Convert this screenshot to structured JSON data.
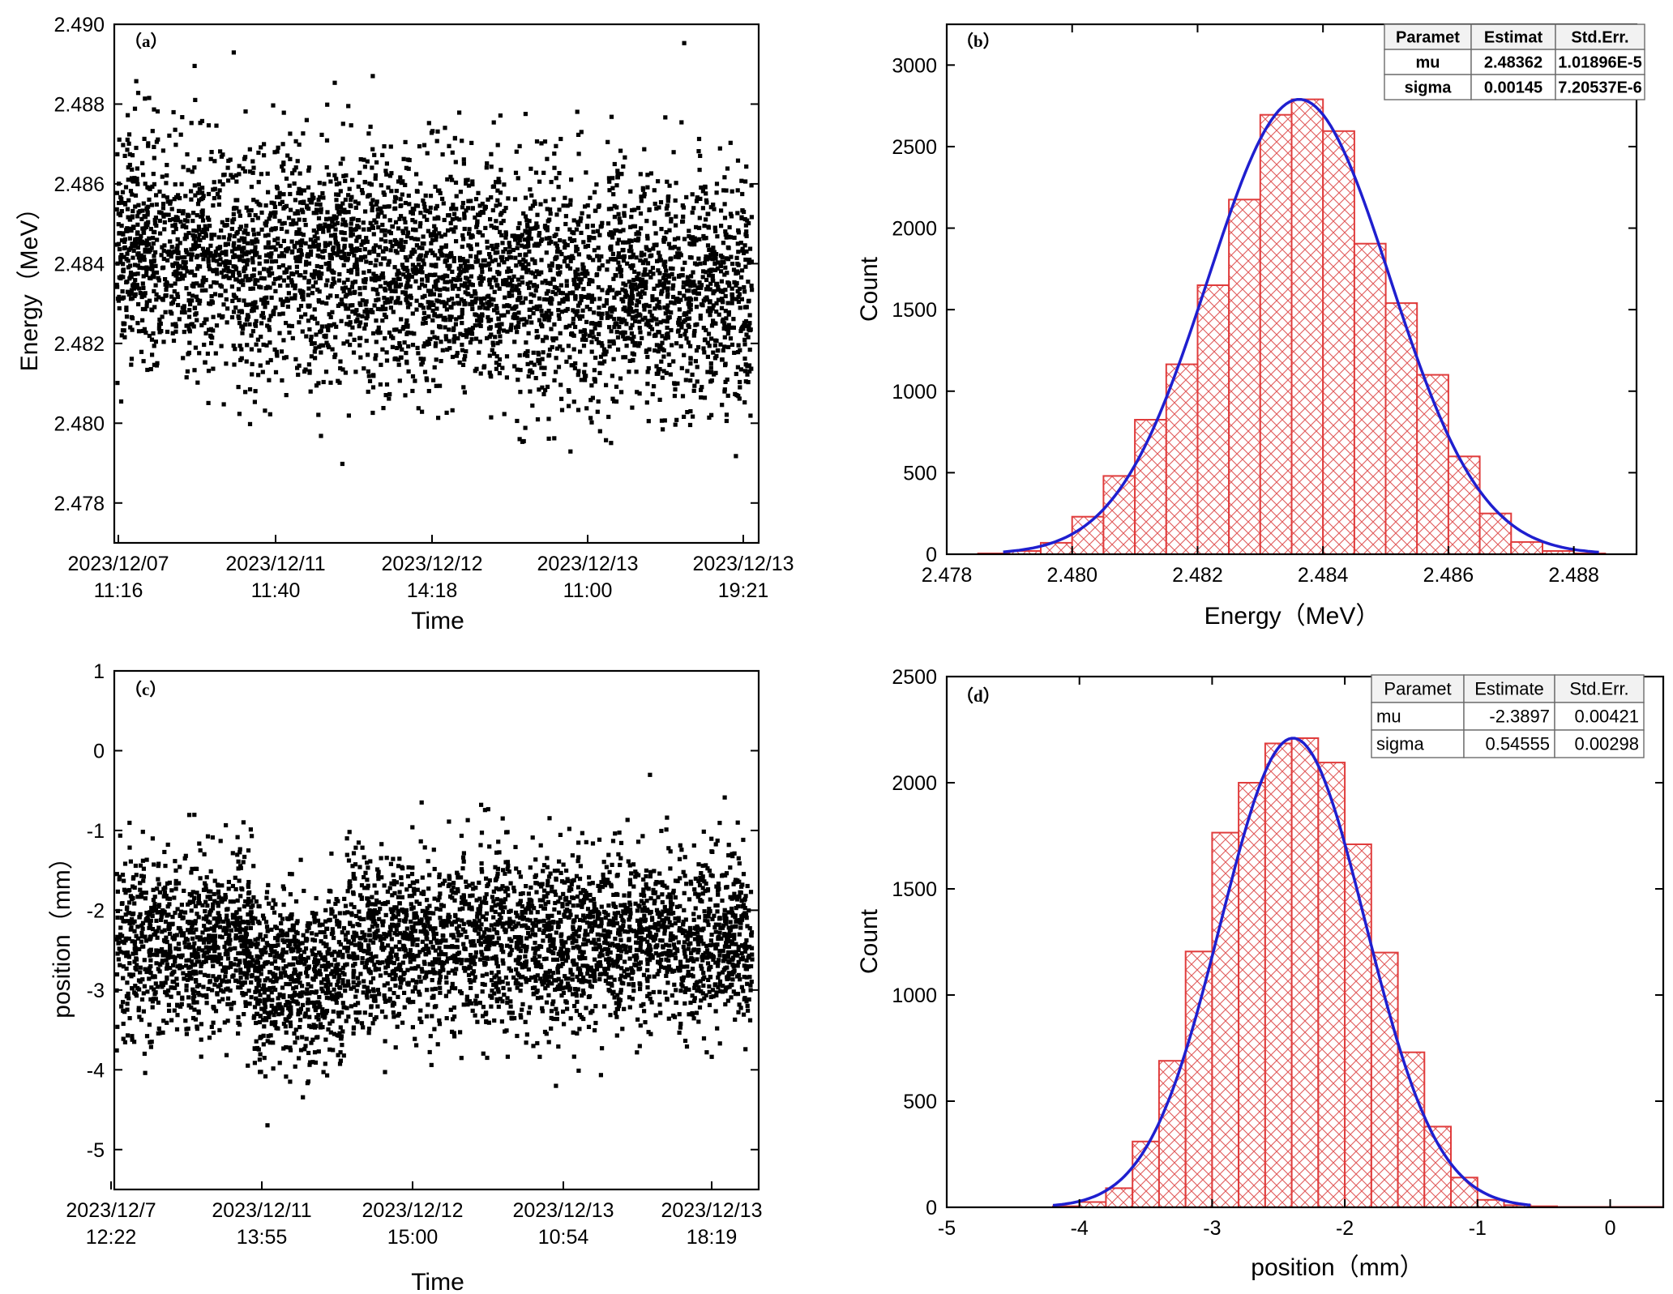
{
  "chart_data": [
    {
      "panel": "(a)",
      "type": "scatter",
      "xlabel": "Time",
      "ylabel": "Energy（MeV）",
      "x_tick_labels": [
        [
          "2023/12/07",
          "11:16"
        ],
        [
          "2023/12/11",
          "11:40"
        ],
        [
          "2023/12/12",
          "14:18"
        ],
        [
          "2023/12/13",
          "11:00"
        ],
        [
          "2023/12/13",
          "19:21"
        ]
      ],
      "y_ticks": [
        "2.478",
        "2.480",
        "2.482",
        "2.484",
        "2.486",
        "2.488",
        "2.490"
      ],
      "ylim": [
        2.477,
        2.49
      ],
      "x_index_range": [
        0,
        4.1
      ],
      "series": [
        {
          "name": "energy",
          "mean_start": 2.4843,
          "mean_end": 2.4832,
          "sigma": 0.00145,
          "n_points": 4200,
          "color": "#000000"
        }
      ]
    },
    {
      "panel": "(b)",
      "type": "bar",
      "xlabel": "Energy（MeV）",
      "ylabel": "Count",
      "x_ticks": [
        "2.478",
        "2.480",
        "2.482",
        "2.484",
        "2.486",
        "2.488"
      ],
      "y_ticks": [
        "0",
        "500",
        "1000",
        "1500",
        "2000",
        "2500",
        "3000"
      ],
      "xlim": [
        2.478,
        2.489
      ],
      "ylim": [
        0,
        3250
      ],
      "bin_width": 0.0005,
      "bin_starts": [
        2.4785,
        2.479,
        2.4795,
        2.48,
        2.4805,
        2.481,
        2.4815,
        2.482,
        2.4825,
        2.483,
        2.4835,
        2.484,
        2.4845,
        2.485,
        2.4855,
        2.486,
        2.4865,
        2.487,
        2.4875,
        2.488
      ],
      "values": [
        5,
        20,
        70,
        230,
        480,
        825,
        1165,
        1650,
        2175,
        2695,
        2790,
        2595,
        1905,
        1540,
        1100,
        600,
        250,
        75,
        20,
        5
      ],
      "bar_color": "#e03c3c",
      "fit": {
        "type": "gauss",
        "color": "#1f1fcf",
        "mu": 2.48362,
        "sigma": 0.00145,
        "peak": 2790,
        "x_range": [
          2.4789,
          2.4884
        ]
      },
      "table": {
        "headers": [
          "Paramet",
          "Estimat",
          "Std.Err."
        ],
        "rows": [
          [
            "mu",
            "2.48362",
            "1.01896E-5"
          ],
          [
            "sigma",
            "0.00145",
            "7.20537E-6"
          ]
        ]
      }
    },
    {
      "panel": "(c)",
      "type": "scatter",
      "xlabel": "Time",
      "ylabel": "position（mm）",
      "x_tick_labels": [
        [
          "2023/12/7",
          "12:22"
        ],
        [
          "2023/12/11",
          "13:55"
        ],
        [
          "2023/12/12",
          "15:00"
        ],
        [
          "2023/12/13",
          "10:54"
        ],
        [
          "2023/12/13",
          "18:19"
        ]
      ],
      "y_ticks": [
        "-5",
        "-4",
        "-3",
        "-2",
        "-1",
        "0",
        "1"
      ],
      "ylim": [
        -5.5,
        1
      ],
      "x_index_range": [
        0,
        4.2
      ],
      "series": [
        {
          "name": "position",
          "mean": -2.39,
          "sigma": 0.5456,
          "dip_region_index": [
            0.95,
            1.55
          ],
          "dip_mean": -2.85,
          "n_points": 4200,
          "color": "#000000"
        }
      ]
    },
    {
      "panel": "(d)",
      "type": "bar",
      "xlabel": "position（mm）",
      "ylabel": "Count",
      "x_ticks": [
        "-5",
        "-4",
        "-3",
        "-2",
        "-1",
        "0"
      ],
      "y_ticks": [
        "0",
        "500",
        "1000",
        "1500",
        "2000",
        "2500"
      ],
      "xlim": [
        -5,
        0.4
      ],
      "ylim": [
        0,
        2500
      ],
      "bin_width": 0.2,
      "bin_starts": [
        -4.2,
        -4.0,
        -3.8,
        -3.6,
        -3.4,
        -3.2,
        -3.0,
        -2.8,
        -2.6,
        -2.4,
        -2.2,
        -2.0,
        -1.8,
        -1.6,
        -1.4,
        -1.2,
        -1.0,
        -0.8,
        -0.6,
        -0.4,
        -0.2,
        0.0,
        0.2
      ],
      "values": [
        5,
        25,
        90,
        310,
        690,
        1205,
        1765,
        2000,
        2185,
        2210,
        2095,
        1710,
        1200,
        730,
        380,
        140,
        35,
        10,
        5,
        2,
        2,
        2,
        2
      ],
      "bar_color": "#e03c3c",
      "fit": {
        "type": "gauss",
        "color": "#1f1fcf",
        "mu": -2.3897,
        "sigma": 0.54555,
        "peak": 2210,
        "x_range": [
          -4.2,
          -0.6
        ]
      },
      "table": {
        "headers": [
          "Paramet",
          "Estimate",
          "Std.Err."
        ],
        "rows": [
          [
            "mu",
            "-2.3897",
            "0.00421"
          ],
          [
            "sigma",
            "0.54555",
            "0.00298"
          ]
        ]
      }
    }
  ]
}
